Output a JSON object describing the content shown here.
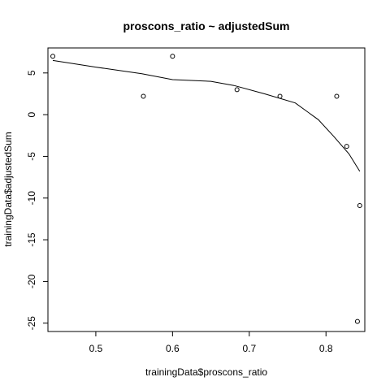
{
  "chart_data": {
    "type": "scatter",
    "title": "proscons_ratio ~ adjustedSum",
    "xlabel": "trainingData$proscons_ratio",
    "ylabel": "trainingData$adjustedSum",
    "xlim": [
      0.4376,
      0.8506
    ],
    "ylim": [
      -26.0,
      8.0
    ],
    "grid": false,
    "legend": "none",
    "x_ticks": [
      0.5,
      0.6,
      0.7,
      0.8
    ],
    "x_tick_labels": [
      "0.5",
      "0.6",
      "0.7",
      "0.8"
    ],
    "y_ticks": [
      -25,
      -20,
      -15,
      -10,
      -5,
      0,
      5
    ],
    "y_tick_labels": [
      "-25",
      "-20",
      "-15",
      "-10",
      "-5",
      "0",
      "5"
    ],
    "series": [
      {
        "kind": "points",
        "x": [
          0.444,
          0.562,
          0.6,
          0.684,
          0.74,
          0.814,
          0.827,
          0.841,
          0.844
        ],
        "y": [
          7.0,
          2.2,
          7.0,
          3.0,
          2.2,
          2.2,
          -3.8,
          -24.8,
          -10.9
        ]
      },
      {
        "kind": "smooth-line",
        "x": [
          0.444,
          0.5,
          0.56,
          0.6,
          0.65,
          0.68,
          0.72,
          0.76,
          0.79,
          0.81,
          0.83,
          0.844
        ],
        "y": [
          6.5,
          5.7,
          4.9,
          4.2,
          4.0,
          3.5,
          2.5,
          1.4,
          -0.6,
          -2.6,
          -4.7,
          -6.8
        ]
      }
    ]
  }
}
